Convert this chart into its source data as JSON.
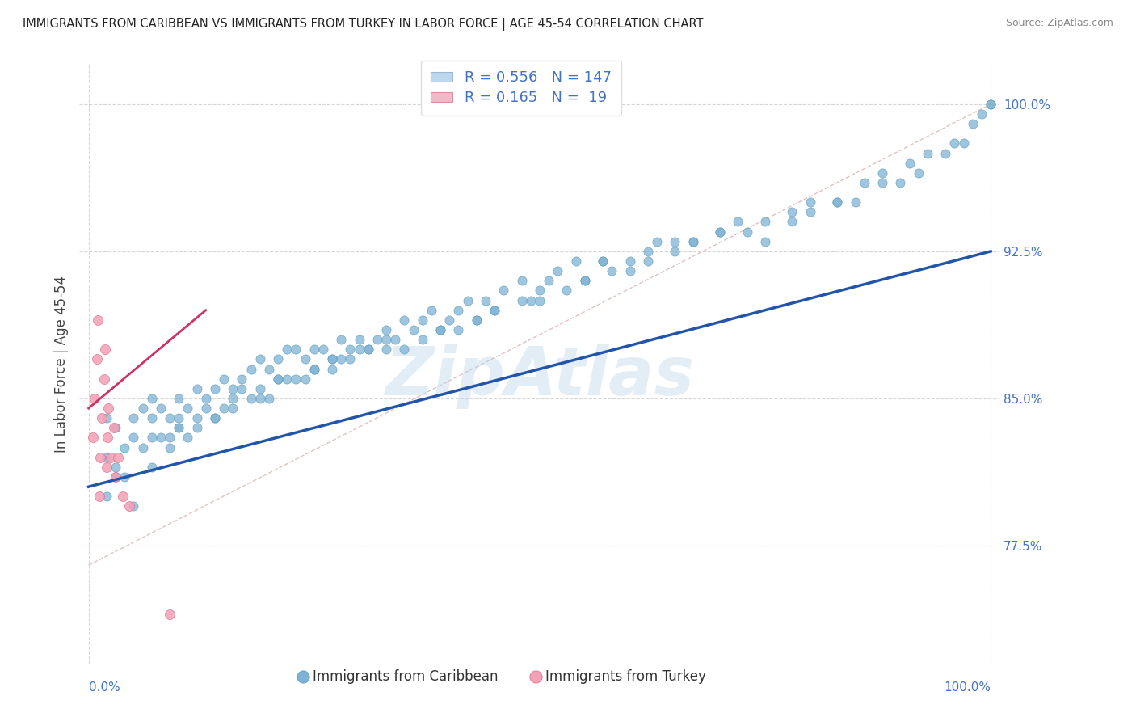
{
  "title": "IMMIGRANTS FROM CARIBBEAN VS IMMIGRANTS FROM TURKEY IN LABOR FORCE | AGE 45-54 CORRELATION CHART",
  "source": "Source: ZipAtlas.com",
  "xlabel_bottom_left": "0.0%",
  "xlabel_bottom_right": "100.0%",
  "ylabel": "In Labor Force | Age 45-54",
  "yticks": [
    0.775,
    0.85,
    0.925,
    1.0
  ],
  "ytick_labels": [
    "77.5%",
    "85.0%",
    "92.5%",
    "100.0%"
  ],
  "xlim": [
    -0.01,
    1.01
  ],
  "ylim": [
    0.715,
    1.02
  ],
  "legend_entries": [
    {
      "label": "Immigrants from Caribbean",
      "R": "0.556",
      "N": "147",
      "facecolor": "#bdd7ee",
      "edgecolor": "#9ab7d3"
    },
    {
      "label": "Immigrants from Turkey",
      "R": "0.165",
      "N": "19",
      "facecolor": "#f4b8c8",
      "edgecolor": "#d48fa0"
    }
  ],
  "background_color": "#ffffff",
  "grid_color": "#cccccc",
  "title_color": "#222222",
  "axis_label_color": "#4472c4",
  "watermark": "ZipAtlas",
  "watermark_color": "#b8d4ea",
  "caribbean_scatter_color": "#7fb3d3",
  "turkey_scatter_color": "#f4a0b5",
  "trendline_caribbean_color": "#2255aa",
  "trendline_turkey_color": "#cc3366",
  "ref_line_color": "#ddbbbb",
  "caribbean_trend_x0": 0.0,
  "caribbean_trend_y0": 0.805,
  "caribbean_trend_x1": 1.0,
  "caribbean_trend_y1": 0.925,
  "turkey_trend_x0": 0.0,
  "turkey_trend_y0": 0.845,
  "turkey_trend_x1": 0.13,
  "turkey_trend_y1": 0.895,
  "caribbean_points_x": [
    0.02,
    0.02,
    0.03,
    0.03,
    0.04,
    0.04,
    0.05,
    0.05,
    0.06,
    0.06,
    0.07,
    0.07,
    0.07,
    0.08,
    0.08,
    0.09,
    0.09,
    0.1,
    0.1,
    0.1,
    0.11,
    0.11,
    0.12,
    0.12,
    0.13,
    0.13,
    0.14,
    0.14,
    0.15,
    0.15,
    0.16,
    0.16,
    0.17,
    0.18,
    0.18,
    0.19,
    0.19,
    0.2,
    0.2,
    0.21,
    0.21,
    0.22,
    0.22,
    0.23,
    0.24,
    0.24,
    0.25,
    0.25,
    0.26,
    0.27,
    0.27,
    0.28,
    0.28,
    0.29,
    0.3,
    0.3,
    0.31,
    0.32,
    0.33,
    0.33,
    0.34,
    0.35,
    0.36,
    0.37,
    0.38,
    0.39,
    0.4,
    0.41,
    0.42,
    0.43,
    0.44,
    0.45,
    0.46,
    0.48,
    0.49,
    0.5,
    0.51,
    0.52,
    0.54,
    0.55,
    0.57,
    0.58,
    0.6,
    0.62,
    0.63,
    0.65,
    0.67,
    0.7,
    0.72,
    0.75,
    0.78,
    0.8,
    0.83,
    0.85,
    0.88,
    0.9,
    0.92,
    0.95,
    0.97,
    1.0,
    0.02,
    0.03,
    0.05,
    0.07,
    0.09,
    0.1,
    0.12,
    0.14,
    0.16,
    0.17,
    0.19,
    0.21,
    0.23,
    0.25,
    0.27,
    0.29,
    0.31,
    0.33,
    0.35,
    0.37,
    0.39,
    0.41,
    0.43,
    0.45,
    0.48,
    0.5,
    0.53,
    0.55,
    0.57,
    0.6,
    0.62,
    0.65,
    0.67,
    0.7,
    0.73,
    0.75,
    0.78,
    0.8,
    0.83,
    0.86,
    0.88,
    0.91,
    0.93,
    0.96,
    0.98,
    0.99,
    1.0
  ],
  "caribbean_points_y": [
    0.84,
    0.82,
    0.815,
    0.835,
    0.825,
    0.81,
    0.83,
    0.84,
    0.845,
    0.825,
    0.84,
    0.85,
    0.83,
    0.845,
    0.83,
    0.84,
    0.825,
    0.85,
    0.84,
    0.835,
    0.845,
    0.83,
    0.855,
    0.84,
    0.85,
    0.845,
    0.855,
    0.84,
    0.86,
    0.845,
    0.855,
    0.85,
    0.86,
    0.865,
    0.85,
    0.87,
    0.855,
    0.865,
    0.85,
    0.87,
    0.86,
    0.875,
    0.86,
    0.875,
    0.87,
    0.86,
    0.875,
    0.865,
    0.875,
    0.87,
    0.865,
    0.88,
    0.87,
    0.875,
    0.88,
    0.875,
    0.875,
    0.88,
    0.885,
    0.875,
    0.88,
    0.89,
    0.885,
    0.89,
    0.895,
    0.885,
    0.89,
    0.895,
    0.9,
    0.89,
    0.9,
    0.895,
    0.905,
    0.91,
    0.9,
    0.905,
    0.91,
    0.915,
    0.92,
    0.91,
    0.92,
    0.915,
    0.92,
    0.925,
    0.93,
    0.93,
    0.93,
    0.935,
    0.94,
    0.93,
    0.94,
    0.945,
    0.95,
    0.95,
    0.96,
    0.96,
    0.965,
    0.975,
    0.98,
    1.0,
    0.8,
    0.81,
    0.795,
    0.815,
    0.83,
    0.835,
    0.835,
    0.84,
    0.845,
    0.855,
    0.85,
    0.86,
    0.86,
    0.865,
    0.87,
    0.87,
    0.875,
    0.88,
    0.875,
    0.88,
    0.885,
    0.885,
    0.89,
    0.895,
    0.9,
    0.9,
    0.905,
    0.91,
    0.92,
    0.915,
    0.92,
    0.925,
    0.93,
    0.935,
    0.935,
    0.94,
    0.945,
    0.95,
    0.95,
    0.96,
    0.965,
    0.97,
    0.975,
    0.98,
    0.99,
    0.995,
    1.0
  ],
  "turkey_points_x": [
    0.005,
    0.007,
    0.009,
    0.01,
    0.012,
    0.013,
    0.015,
    0.017,
    0.018,
    0.02,
    0.021,
    0.022,
    0.025,
    0.028,
    0.03,
    0.033,
    0.038,
    0.045,
    0.09
  ],
  "turkey_points_y": [
    0.83,
    0.85,
    0.87,
    0.89,
    0.8,
    0.82,
    0.84,
    0.86,
    0.875,
    0.815,
    0.83,
    0.845,
    0.82,
    0.835,
    0.81,
    0.82,
    0.8,
    0.795,
    0.74
  ]
}
